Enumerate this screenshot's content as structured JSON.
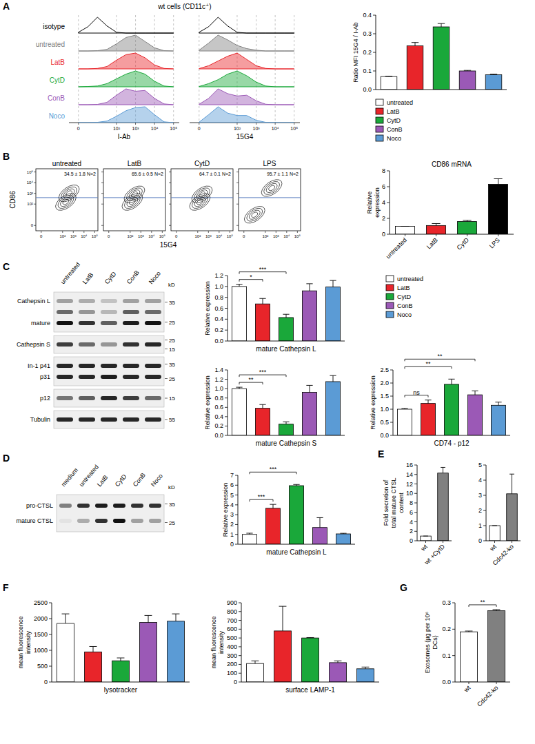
{
  "panel_labels": [
    "A",
    "B",
    "C",
    "D",
    "E",
    "F",
    "G"
  ],
  "flow_histograms": {
    "title": "wt cells (CD11c⁺)",
    "row_labels": [
      "isotype",
      "untreated",
      "LatB",
      "CytD",
      "ConB",
      "Noco"
    ],
    "row_colors": [
      "#000000",
      "#808080",
      "#e8252a",
      "#1aa83a",
      "#9b59b6",
      "#5b9bd5"
    ],
    "filled": [
      false,
      true,
      true,
      true,
      true,
      true
    ],
    "x": [
      0,
      0.5,
      1,
      1.5,
      2,
      2.5,
      3,
      3.5,
      4,
      4.5,
      5
    ],
    "xlim": [
      -0.5,
      5.3
    ],
    "xticks": [
      0,
      {
        "value": 2,
        "label": "10²"
      },
      {
        "value": 3,
        "label": "10³"
      },
      {
        "value": 4,
        "label": "10⁴"
      },
      {
        "value": 5,
        "label": "10⁵"
      }
    ],
    "grid": true,
    "columns": [
      {
        "label": "I-Ab",
        "curves": [
          [
            0.05,
            0.4,
            1,
            0.45,
            0.05,
            0,
            0,
            0,
            0,
            0,
            0
          ],
          [
            0,
            0,
            0.02,
            0.1,
            0.45,
            0.85,
            1,
            0.6,
            0.2,
            0.02,
            0
          ],
          [
            0,
            0,
            0.03,
            0.15,
            0.55,
            0.9,
            1,
            0.7,
            0.25,
            0.03,
            0
          ],
          [
            0,
            0.02,
            0.05,
            0.2,
            0.5,
            0.8,
            1,
            0.8,
            0.35,
            0.05,
            0
          ],
          [
            0,
            0,
            0.02,
            0.15,
            0.6,
            1,
            0.85,
            0.9,
            0.4,
            0.05,
            0
          ],
          [
            0,
            0,
            0.02,
            0.1,
            0.4,
            0.75,
            0.95,
            1,
            0.5,
            0.05,
            0
          ]
        ]
      },
      {
        "label": "15G4",
        "curves": [
          [
            0.05,
            0.4,
            1,
            0.45,
            0.05,
            0,
            0,
            0,
            0,
            0,
            0
          ],
          [
            0.05,
            0.5,
            1,
            0.7,
            0.35,
            0.15,
            0.05,
            0,
            0,
            0,
            0
          ],
          [
            0.02,
            0.2,
            0.5,
            0.8,
            1,
            0.6,
            0.2,
            0.03,
            0,
            0,
            0
          ],
          [
            0.02,
            0.2,
            0.45,
            0.8,
            1,
            0.7,
            0.3,
            0.05,
            0,
            0,
            0
          ],
          [
            0.03,
            0.4,
            1,
            0.7,
            0.55,
            0.6,
            0.25,
            0.03,
            0,
            0,
            0
          ],
          [
            0.03,
            0.5,
            1,
            0.6,
            0.45,
            0.45,
            0.15,
            0.02,
            0,
            0,
            0
          ]
        ]
      }
    ]
  },
  "contour_plots": {
    "y_label": "CD86",
    "x_label": "15G4",
    "xlim": [
      -0.5,
      5.3
    ],
    "ylim": [
      -0.5,
      5.3
    ],
    "xticks": [
      0,
      {
        "value": 2,
        "label": "10²"
      },
      {
        "value": 3,
        "label": "10³"
      },
      {
        "value": 4,
        "label": "10⁴"
      },
      {
        "value": 5,
        "label": "10⁵"
      }
    ],
    "yticks": [
      0,
      {
        "value": 2,
        "label": "10²"
      },
      {
        "value": 3,
        "label": "10³"
      },
      {
        "value": 4,
        "label": "10⁴"
      },
      {
        "value": 5,
        "label": "10⁵"
      }
    ],
    "gate": 2.6,
    "plots": [
      {
        "title": "untreated",
        "stat": "34.5 ± 1.8 N=2",
        "clusters": [
          {
            "x": 2.3,
            "y": 2.2
          },
          {
            "x": 2.6,
            "y": 3.0
          }
        ]
      },
      {
        "title": "LatB",
        "stat": "65.6 ± 0.5 N=2",
        "clusters": [
          {
            "x": 2.2,
            "y": 2.2
          },
          {
            "x": 2.4,
            "y": 2.9
          }
        ]
      },
      {
        "title": "CytD",
        "stat": "64.7 ± 0.1 N=2",
        "clusters": [
          {
            "x": 2.2,
            "y": 2.2
          },
          {
            "x": 2.4,
            "y": 2.9
          }
        ]
      },
      {
        "title": "LPS",
        "stat": "95.7 ± 1.1 N=2",
        "clusters": [
          {
            "x": 2.6,
            "y": 3.5
          },
          {
            "x": 1.0,
            "y": 1.0
          }
        ]
      }
    ]
  },
  "blots": [
    {
      "lanes": [
        "untreated",
        "LatB",
        "CytD",
        "ConB",
        "Noco"
      ],
      "unit": "kD",
      "strips": [
        {
          "rows": [
            {
              "label": "Cathepsin L",
              "intensity": [
                0.35,
                0.3,
                0.2,
                0.35,
                0.35
              ]
            },
            {
              "label": null,
              "intensity": [
                0.6,
                0.4,
                0.25,
                0.65,
                0.6
              ]
            },
            {
              "label": "mature",
              "intensity": [
                1,
                0.85,
                0.65,
                0.95,
                1
              ]
            }
          ],
          "markers": [
            35,
            25
          ]
        },
        {
          "rows": [
            {
              "label": "Cathepsin S",
              "intensity": [
                0.8,
                0.6,
                0.4,
                0.85,
                0.9
              ]
            }
          ],
          "markers": [
            25,
            15
          ]
        },
        {
          "rows": [
            {
              "label": "In-1 p41",
              "intensity": [
                0.9,
                0.9,
                0.9,
                0.9,
                0.9
              ]
            },
            {
              "label": "p31",
              "intensity": [
                0.9,
                0.9,
                0.95,
                0.9,
                0.9
              ]
            }
          ],
          "markers": [
            35,
            25
          ]
        },
        {
          "rows": [
            {
              "label": "p12",
              "intensity": [
                0.55,
                0.65,
                0.9,
                0.8,
                0.6
              ]
            }
          ],
          "markers": [
            15
          ]
        },
        {
          "rows": [
            {
              "label": "Tubulin",
              "intensity": [
                0.9,
                0.9,
                0.9,
                0.9,
                0.9
              ]
            }
          ],
          "markers": [
            55
          ]
        }
      ]
    },
    {
      "lanes": [
        "medium",
        "untreated",
        "LatB",
        "CytD",
        "ConB",
        "Noco"
      ],
      "unit": "kD",
      "strips": [
        {
          "rows": [
            {
              "label": "pro-CTSL",
              "intensity": [
                0.5,
                0.85,
                0.95,
                0.95,
                0.85,
                0.85
              ]
            },
            {
              "label": "mature CTSL",
              "intensity": [
                0.05,
                0.3,
                0.85,
                1,
                0.35,
                0.35
              ]
            }
          ],
          "markers": [
            35,
            25
          ]
        }
      ]
    }
  ],
  "chart_data": [
    {
      "type": "bar",
      "y_label": "Ratio MFI 15G4 / I-Ab",
      "categories": [
        "untreated",
        "LatB",
        "CytD",
        "ConB",
        "Noco"
      ],
      "values": [
        0.07,
        0.235,
        0.337,
        0.1,
        0.08
      ],
      "errors": [
        0.002,
        0.018,
        0.018,
        0.003,
        0.003
      ],
      "colors": [
        "#ffffff",
        "#e8252a",
        "#1aa83a",
        "#9b59b6",
        "#5b9bd5"
      ],
      "ylim": [
        0,
        0.4
      ],
      "yticks": [
        {
          "value": 0,
          "label": "0.0"
        },
        0.1,
        0.2,
        0.3,
        0.4
      ],
      "tick_labels": "y",
      "legend": "bottom"
    },
    {
      "type": "bar",
      "title": "CD86 mRNA",
      "y_label": "Relative expression",
      "categories": [
        "untreated",
        "LatB",
        "CytD",
        "LPS"
      ],
      "values": [
        1,
        1.1,
        1.6,
        6.3
      ],
      "errors": [
        0,
        0.25,
        0.15,
        0.7
      ],
      "colors": [
        "#ffffff",
        "#e8252a",
        "#1aa83a",
        "#000000"
      ],
      "ylim": [
        0,
        8
      ],
      "yticks": [
        0,
        2,
        4,
        6,
        8
      ]
    },
    {
      "type": "bar",
      "x_label": "mature Cathepsin L",
      "y_label": "Relative expression",
      "categories": [
        "untreated",
        "LatB",
        "CytD",
        "ConB",
        "Noco"
      ],
      "values": [
        1.0,
        0.68,
        0.43,
        0.92,
        0.99
      ],
      "errors": [
        0.04,
        0.1,
        0.06,
        0.13,
        0.12
      ],
      "colors": [
        "#ffffff",
        "#e8252a",
        "#1aa83a",
        "#9b59b6",
        "#5b9bd5"
      ],
      "ylim": [
        0,
        1.2
      ],
      "yticks": [
        {
          "value": 0,
          "label": "0.0"
        },
        0.2,
        0.4,
        0.6,
        0.8,
        {
          "value": 1,
          "label": "1.0"
        },
        1.2
      ],
      "tick_labels": "y",
      "legend": "right",
      "annotations": [
        {
          "text": "*",
          "from": 0,
          "to": 1
        },
        {
          "text": "***",
          "from": 0,
          "to": 2
        }
      ]
    },
    {
      "type": "bar",
      "x_label": "mature Cathepsin S",
      "y_label": "Relative expression",
      "categories": [
        null,
        null,
        null,
        null,
        null
      ],
      "values": [
        1.0,
        0.58,
        0.24,
        0.92,
        1.15
      ],
      "errors": [
        0.03,
        0.08,
        0.05,
        0.15,
        0.13
      ],
      "colors": [
        "#ffffff",
        "#e8252a",
        "#1aa83a",
        "#9b59b6",
        "#5b9bd5"
      ],
      "ylim": [
        0,
        1.4
      ],
      "yticks": [
        {
          "value": 0,
          "label": "0.0"
        },
        0.2,
        0.4,
        0.6,
        0.8,
        {
          "value": 1,
          "label": "1.0"
        },
        1.2,
        1.4
      ],
      "tick_labels": "y",
      "annotations": [
        {
          "text": "**",
          "from": 0,
          "to": 1
        },
        {
          "text": "***",
          "from": 0,
          "to": 2
        }
      ]
    },
    {
      "type": "bar",
      "x_label": "CD74 - p12",
      "y_label": "Relative expression",
      "categories": [
        null,
        null,
        null,
        null,
        null
      ],
      "values": [
        1.0,
        1.22,
        1.95,
        1.55,
        1.15
      ],
      "errors": [
        0.03,
        0.13,
        0.2,
        0.15,
        0.12
      ],
      "colors": [
        "#ffffff",
        "#e8252a",
        "#1aa83a",
        "#9b59b6",
        "#5b9bd5"
      ],
      "ylim": [
        0,
        2.5
      ],
      "yticks": [
        {
          "value": 0,
          "label": "0.0"
        },
        0.5,
        {
          "value": 1,
          "label": "1.0"
        },
        1.5,
        {
          "value": 2,
          "label": "2.0"
        },
        2.5
      ],
      "tick_labels": "y",
      "annotations": [
        {
          "text": "ns",
          "from": 0,
          "to": 1
        },
        {
          "text": "**",
          "from": 0,
          "to": 2
        },
        {
          "text": "**",
          "from": 0,
          "to": 3
        }
      ]
    },
    {
      "type": "bar",
      "x_label": "mature Cathepsin L",
      "y_label": "Relative expression",
      "categories": [
        null,
        null,
        null,
        null,
        null
      ],
      "values": [
        1.0,
        3.65,
        5.95,
        1.7,
        1.05
      ],
      "errors": [
        0.12,
        0.4,
        0.12,
        1.0,
        0.06
      ],
      "colors": [
        "#ffffff",
        "#e8252a",
        "#1aa83a",
        "#9b59b6",
        "#5b9bd5"
      ],
      "ylim": [
        0,
        7
      ],
      "yticks": [
        0,
        1,
        2,
        3,
        4,
        5,
        6,
        7
      ],
      "tick_labels": "y",
      "annotations": [
        {
          "text": "***",
          "from": 0,
          "to": 1
        },
        {
          "text": "***",
          "from": 0,
          "to": 2
        }
      ]
    },
    {
      "type": "bar",
      "y_label": "Fold secretion of total mature CTSL content",
      "categories": [
        "wt",
        "wt +CytD"
      ],
      "values": [
        1,
        14.3
      ],
      "errors": [
        0,
        1.2
      ],
      "colors": [
        "#ffffff",
        "#808080"
      ],
      "ylim": [
        0,
        16
      ],
      "yticks": [
        0,
        2,
        4,
        6,
        8,
        10,
        12,
        14,
        16
      ]
    },
    {
      "type": "bar",
      "categories": [
        "wt",
        "Cdc42-ko"
      ],
      "values": [
        1,
        3.1
      ],
      "errors": [
        0,
        1.3
      ],
      "colors": [
        "#ffffff",
        "#808080"
      ],
      "ylim": [
        0,
        5
      ],
      "yticks": [
        0,
        1,
        2,
        3,
        4,
        5
      ]
    },
    {
      "type": "bar",
      "x_label": "lysotracker",
      "y_label": "mean fluorescence intensity",
      "categories": [
        null,
        null,
        null,
        null,
        null
      ],
      "values": [
        1850,
        950,
        670,
        1880,
        1920
      ],
      "errors": [
        300,
        170,
        90,
        220,
        230
      ],
      "colors": [
        "#ffffff",
        "#e8252a",
        "#1aa83a",
        "#9b59b6",
        "#5b9bd5"
      ],
      "ylim": [
        0,
        2500
      ],
      "yticks": [
        0,
        500,
        1000,
        1500,
        2000,
        2500
      ],
      "tick_labels": "y"
    },
    {
      "type": "bar",
      "x_label": "surface LAMP-1",
      "y_label": "mean fluorescence intensity",
      "categories": [
        null,
        null,
        null,
        null,
        null
      ],
      "values": [
        210,
        580,
        500,
        220,
        150
      ],
      "errors": [
        30,
        280,
        5,
        20,
        20
      ],
      "colors": [
        "#ffffff",
        "#e8252a",
        "#1aa83a",
        "#9b59b6",
        "#5b9bd5"
      ],
      "ylim": [
        0,
        900
      ],
      "yticks": [
        0,
        100,
        200,
        300,
        400,
        500,
        600,
        700,
        800,
        900
      ],
      "tick_labels": "y"
    },
    {
      "type": "bar",
      "y_label": "Exosomes (µg per 10⁶ DCs)",
      "categories": [
        "wt",
        "Cdc42-ko"
      ],
      "values": [
        0.19,
        0.27
      ],
      "errors": [
        0.003,
        0.004
      ],
      "colors": [
        "#ffffff",
        "#808080"
      ],
      "ylim": [
        0,
        0.3
      ],
      "yticks": [
        {
          "value": 0,
          "label": "0.0"
        },
        0.1,
        0.2,
        0.3
      ],
      "annotations": [
        {
          "text": "**",
          "from": 0,
          "to": 1
        }
      ]
    }
  ]
}
